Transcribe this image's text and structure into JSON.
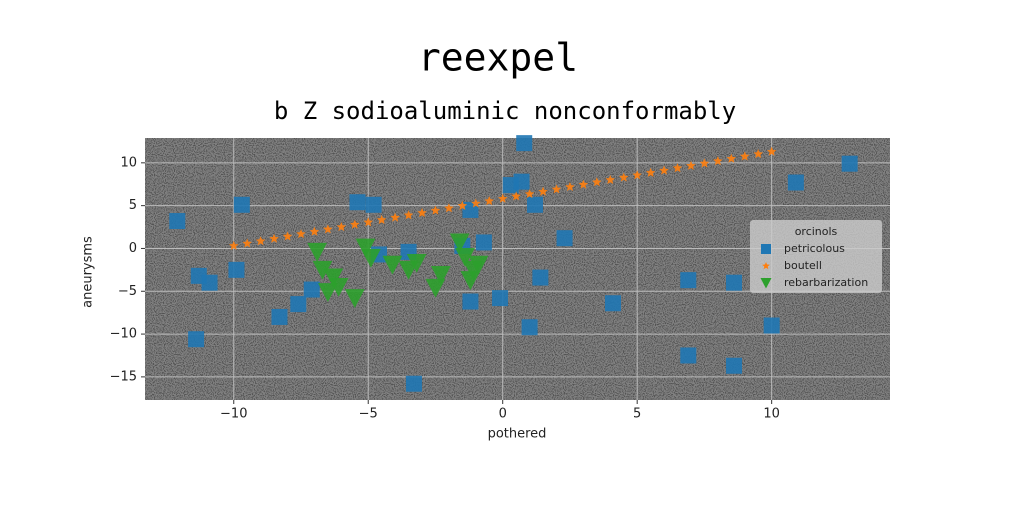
{
  "chart_data": {
    "type": "scatter",
    "title": "reexpel",
    "subtitle": "b Z sodioaluminic nonconformably",
    "x_label": "pothered",
    "y_label": "aneurysms",
    "legend_title": "orcinols",
    "legend_position": "right",
    "grid": true,
    "xlim": [
      -13.3,
      14.4
    ],
    "ylim": [
      -17.7,
      12.9
    ],
    "xticks": [
      {
        "value": -10,
        "label": "−10"
      },
      {
        "value": -5,
        "label": "−5"
      },
      0,
      5,
      10
    ],
    "yticks": [
      {
        "value": -15,
        "label": "−15"
      },
      {
        "value": -10,
        "label": "−10"
      },
      {
        "value": -5,
        "label": "−5"
      },
      0,
      5,
      10
    ],
    "series": [
      {
        "name": "petricolous",
        "color": "#1f77b4",
        "marker": "square",
        "x": [
          -12.1,
          -9.7,
          -11.3,
          -10.9,
          -9.9,
          -11.4,
          -8.3,
          -7.6,
          -7.1,
          -5.4,
          -4.8,
          -4.6,
          -3.5,
          -3.3,
          -1.2,
          -1.2,
          -0.7,
          -0.1,
          0.8,
          0.3,
          0.7,
          1.2,
          1.0,
          1.4,
          2.3,
          4.1,
          6.9,
          6.9,
          8.6,
          8.6,
          10.0,
          10.9,
          12.9,
          -1.5
        ],
        "y": [
          3.2,
          5.1,
          -3.2,
          -4.0,
          -2.5,
          -10.6,
          -8.0,
          -6.5,
          -4.8,
          5.4,
          5.1,
          -0.7,
          -0.4,
          -15.8,
          4.5,
          -6.2,
          0.7,
          -5.8,
          12.3,
          7.4,
          7.8,
          5.1,
          -9.2,
          -3.4,
          1.2,
          -6.4,
          -3.7,
          -12.5,
          -4.0,
          -13.7,
          -9.0,
          7.7,
          9.9,
          0.3
        ]
      },
      {
        "name": "boutell",
        "color": "#ff7f0e",
        "marker": "star",
        "x": [
          -10,
          -9.5,
          -9,
          -8.5,
          -8,
          -7.5,
          -7,
          -6.5,
          -6,
          -5.5,
          -5,
          -4.5,
          -4,
          -3.5,
          -3,
          -2.5,
          -2,
          -1.5,
          -1,
          -0.5,
          0,
          0.5,
          1,
          1.5,
          2,
          2.5,
          3,
          3.5,
          4,
          4.5,
          5,
          5.5,
          6,
          6.5,
          7,
          7.5,
          8,
          8.5,
          9,
          9.5,
          10
        ],
        "y": [
          0.3,
          0.58,
          0.85,
          1.13,
          1.4,
          1.68,
          1.95,
          2.23,
          2.5,
          2.78,
          3.05,
          3.33,
          3.6,
          3.88,
          4.15,
          4.43,
          4.7,
          4.98,
          5.25,
          5.53,
          5.8,
          6.08,
          6.35,
          6.63,
          6.9,
          7.18,
          7.45,
          7.73,
          8.0,
          8.28,
          8.55,
          8.83,
          9.1,
          9.38,
          9.65,
          9.93,
          10.2,
          10.48,
          10.75,
          11.03,
          11.3
        ]
      },
      {
        "name": "rebarbarization",
        "color": "#2ca02c",
        "marker": "triangle-down",
        "x": [
          -6.9,
          -6.7,
          -6.3,
          -6.1,
          -6.5,
          -5.5,
          -5.1,
          -4.9,
          -4.1,
          -3.5,
          -3.2,
          -2.3,
          -2.5,
          -1.6,
          -1.4,
          -1.1,
          -0.9,
          -1.2
        ],
        "y": [
          -0.4,
          -2.5,
          -3.4,
          -4.5,
          -5.1,
          -5.8,
          0.1,
          -1.1,
          -1.9,
          -2.5,
          -1.7,
          -3.1,
          -4.6,
          0.7,
          -1.0,
          -2.5,
          -1.9,
          -3.7
        ]
      }
    ]
  }
}
